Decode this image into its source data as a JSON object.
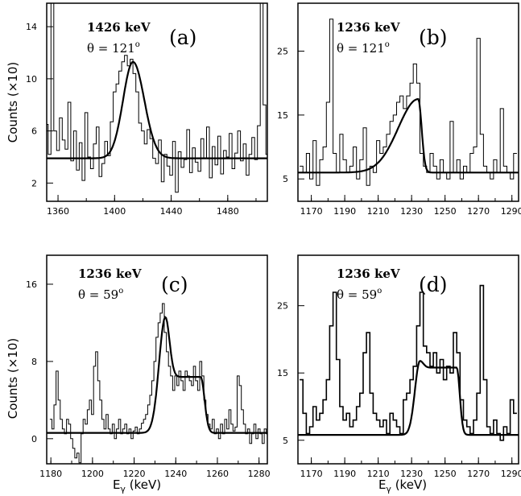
{
  "figure": {
    "ylabel": "Counts (×10)",
    "xlabel_base": "E",
    "xlabel_sub": "γ",
    "xlabel_unit": " (keV)"
  },
  "chart_data": [
    {
      "type": "line",
      "panel": "(a)",
      "energy": "1426 keV",
      "theta": "θ = 121",
      "degree": "o",
      "xlim": [
        1352,
        1508
      ],
      "ylim": [
        0.6,
        15.8
      ],
      "xticks": [
        1360,
        1400,
        1440,
        1480
      ],
      "yticks": [
        2,
        6,
        10,
        14
      ],
      "background": 3.9,
      "fit": {
        "center": 1413,
        "height": 7.4,
        "sigma_low": 7,
        "sigma_high": 8
      },
      "data": {
        "x": [
          1352,
          1354,
          1356,
          1358,
          1360,
          1362,
          1364,
          1366,
          1368,
          1370,
          1372,
          1374,
          1376,
          1378,
          1380,
          1382,
          1384,
          1386,
          1388,
          1390,
          1392,
          1394,
          1396,
          1398,
          1400,
          1402,
          1404,
          1406,
          1408,
          1410,
          1412,
          1414,
          1416,
          1418,
          1420,
          1422,
          1424,
          1426,
          1428,
          1430,
          1432,
          1434,
          1436,
          1438,
          1440,
          1442,
          1444,
          1446,
          1448,
          1450,
          1452,
          1454,
          1456,
          1458,
          1460,
          1462,
          1464,
          1466,
          1468,
          1470,
          1472,
          1474,
          1476,
          1478,
          1480,
          1482,
          1484,
          1486,
          1488,
          1490,
          1492,
          1494,
          1496,
          1498,
          1500,
          1502,
          1504,
          1506,
          1508
        ],
        "y": [
          6.5,
          4.2,
          15.8,
          6.0,
          4.5,
          7.0,
          5.3,
          4.6,
          8.2,
          3.7,
          6.0,
          3.0,
          5.1,
          2.2,
          7.4,
          4.0,
          3.1,
          5.0,
          6.3,
          2.5,
          3.5,
          5.2,
          4.1,
          6.7,
          9.0,
          9.6,
          10.6,
          11.3,
          11.8,
          11.0,
          11.5,
          10.4,
          9.0,
          6.6,
          6.0,
          5.0,
          6.1,
          5.4,
          3.9,
          3.5,
          5.3,
          2.1,
          4.2,
          3.3,
          2.6,
          5.2,
          1.3,
          4.4,
          3.2,
          3.8,
          6.1,
          2.8,
          4.7,
          3.6,
          2.9,
          5.4,
          3.9,
          6.3,
          2.4,
          4.8,
          3.4,
          5.6,
          2.7,
          4.5,
          4.0,
          5.8,
          3.1,
          4.3,
          6.0,
          3.7,
          5.0,
          2.6,
          4.2,
          5.5,
          3.8,
          6.4,
          15.8,
          8.0,
          4.2
        ]
      }
    },
    {
      "type": "line",
      "panel": "(b)",
      "energy": "1236 keV",
      "theta": "θ = 121",
      "degree": "o",
      "xlim": [
        1162,
        1294
      ],
      "ylim": [
        1.5,
        32.5
      ],
      "xticks": [
        1170,
        1190,
        1210,
        1230,
        1250,
        1270,
        1290
      ],
      "yticks": [
        5,
        15,
        25
      ],
      "background": 6.0,
      "fit": {
        "center": 1234,
        "height": 11.5,
        "sigma_low": 12,
        "sigma_high": 2
      },
      "data": {
        "x": [
          1164,
          1166,
          1168,
          1170,
          1172,
          1174,
          1176,
          1178,
          1180,
          1182,
          1184,
          1186,
          1188,
          1190,
          1192,
          1194,
          1196,
          1198,
          1200,
          1202,
          1204,
          1206,
          1208,
          1210,
          1212,
          1214,
          1216,
          1218,
          1220,
          1222,
          1224,
          1226,
          1228,
          1230,
          1232,
          1234,
          1236,
          1238,
          1240,
          1242,
          1244,
          1246,
          1248,
          1250,
          1252,
          1254,
          1256,
          1258,
          1260,
          1262,
          1264,
          1266,
          1268,
          1270,
          1272,
          1274,
          1276,
          1278,
          1280,
          1282,
          1284,
          1286,
          1288,
          1290,
          1292
        ],
        "y": [
          7,
          6,
          9,
          5,
          11,
          4,
          8,
          10,
          17,
          30,
          9,
          6,
          12,
          8,
          6,
          7,
          10,
          5,
          8,
          13,
          4,
          7,
          6,
          11,
          9,
          10,
          12,
          14,
          15,
          17,
          18,
          16,
          18,
          20,
          23,
          20,
          9,
          7,
          6,
          9,
          7,
          5,
          8,
          6,
          5,
          14,
          6,
          8,
          5,
          7,
          6,
          9,
          10,
          27,
          12,
          7,
          6,
          5,
          8,
          6,
          16,
          7,
          6,
          5,
          9
        ]
      }
    },
    {
      "type": "line",
      "panel": "(c)",
      "energy": "1236 keV",
      "theta": "θ = 59",
      "degree": "o",
      "xlim": [
        1178,
        1284
      ],
      "ylim": [
        -2.6,
        19.0
      ],
      "xticks": [
        1180,
        1200,
        1220,
        1240,
        1260,
        1280
      ],
      "yticks": [
        0,
        8,
        16
      ],
      "background": 0.6,
      "fit": {
        "center": 1235,
        "height": 12.0,
        "sigma_low": 3,
        "sigma_high": 2,
        "plateau": 5.8,
        "plateau_end": 1252
      },
      "data": {
        "x": [
          1180,
          1181,
          1182,
          1183,
          1184,
          1185,
          1186,
          1187,
          1188,
          1189,
          1190,
          1191,
          1192,
          1193,
          1194,
          1195,
          1196,
          1197,
          1198,
          1199,
          1200,
          1201,
          1202,
          1203,
          1204,
          1205,
          1206,
          1207,
          1208,
          1209,
          1210,
          1211,
          1212,
          1213,
          1214,
          1215,
          1216,
          1217,
          1218,
          1219,
          1220,
          1221,
          1222,
          1223,
          1224,
          1225,
          1226,
          1227,
          1228,
          1229,
          1230,
          1231,
          1232,
          1233,
          1234,
          1235,
          1236,
          1237,
          1238,
          1239,
          1240,
          1241,
          1242,
          1243,
          1244,
          1245,
          1246,
          1247,
          1248,
          1249,
          1250,
          1251,
          1252,
          1253,
          1254,
          1255,
          1256,
          1257,
          1258,
          1259,
          1260,
          1261,
          1262,
          1263,
          1264,
          1265,
          1266,
          1267,
          1268,
          1269,
          1270,
          1271,
          1272,
          1273,
          1274,
          1275,
          1276,
          1277,
          1278,
          1279,
          1280,
          1281,
          1282,
          1283,
          1284
        ],
        "y": [
          2.0,
          1.0,
          3.5,
          7.0,
          4.0,
          2.0,
          1.0,
          0.5,
          2.0,
          1.5,
          0.0,
          -1.0,
          -2.0,
          -1.5,
          -2.5,
          0.5,
          2.0,
          1.5,
          3.0,
          4.0,
          2.5,
          7.5,
          9.0,
          6.0,
          4.0,
          2.0,
          1.0,
          2.5,
          1.0,
          0.5,
          1.5,
          0.0,
          1.0,
          2.0,
          0.5,
          1.0,
          1.5,
          0.5,
          1.0,
          0.0,
          0.8,
          1.2,
          0.5,
          1.0,
          1.6,
          2.0,
          2.5,
          3.5,
          4.5,
          6.0,
          8.0,
          10.5,
          12.0,
          13.0,
          14.0,
          11.0,
          9.0,
          7.5,
          6.5,
          5.0,
          6.5,
          5.5,
          7.0,
          6.0,
          5.0,
          7.0,
          6.5,
          6.0,
          5.5,
          7.5,
          6.0,
          5.0,
          8.0,
          6.5,
          4.0,
          2.5,
          1.5,
          1.0,
          2.0,
          0.5,
          1.0,
          0.0,
          1.5,
          0.5,
          2.0,
          1.0,
          3.0,
          1.5,
          0.8,
          1.2,
          6.5,
          5.5,
          3.0,
          1.5,
          0.5,
          1.0,
          -0.5,
          0.5,
          1.5,
          0.0,
          1.0,
          0.5,
          -0.5,
          1.0,
          0.5
        ]
      }
    },
    {
      "type": "line",
      "panel": "(d)",
      "energy": "1236 keV",
      "theta": "θ = 59",
      "degree": "o",
      "xlim": [
        1162,
        1294
      ],
      "ylim": [
        1.5,
        32.5
      ],
      "xticks": [
        1170,
        1190,
        1210,
        1230,
        1250,
        1270,
        1290
      ],
      "yticks": [
        5,
        15,
        25
      ],
      "background": 5.8,
      "fit": {
        "center": 1235,
        "height": 11.0,
        "sigma_low": 3,
        "sigma_high": 2,
        "plateau": 10.0,
        "plateau_end": 1257
      },
      "data": {
        "x": [
          1164,
          1166,
          1168,
          1170,
          1172,
          1174,
          1176,
          1178,
          1180,
          1182,
          1184,
          1186,
          1188,
          1190,
          1192,
          1194,
          1196,
          1198,
          1200,
          1202,
          1204,
          1206,
          1208,
          1210,
          1212,
          1214,
          1216,
          1218,
          1220,
          1222,
          1224,
          1226,
          1228,
          1230,
          1232,
          1234,
          1236,
          1238,
          1240,
          1242,
          1244,
          1246,
          1248,
          1250,
          1252,
          1254,
          1256,
          1258,
          1260,
          1262,
          1264,
          1266,
          1268,
          1270,
          1272,
          1274,
          1276,
          1278,
          1280,
          1282,
          1284,
          1286,
          1288,
          1290,
          1292
        ],
        "y": [
          14,
          9,
          6,
          7,
          10,
          8,
          9,
          11,
          14,
          22,
          27,
          17,
          10,
          8,
          9,
          7,
          8,
          10,
          12,
          18,
          21,
          12,
          9,
          8,
          7,
          8,
          6,
          9,
          8,
          7,
          6,
          11,
          12,
          14,
          16,
          22,
          27,
          19,
          18,
          16,
          18,
          15,
          17,
          14,
          16,
          15,
          21,
          18,
          11,
          8,
          7,
          6,
          8,
          12,
          28,
          14,
          7,
          6,
          8,
          6,
          5,
          7,
          6,
          11,
          9
        ]
      }
    }
  ]
}
